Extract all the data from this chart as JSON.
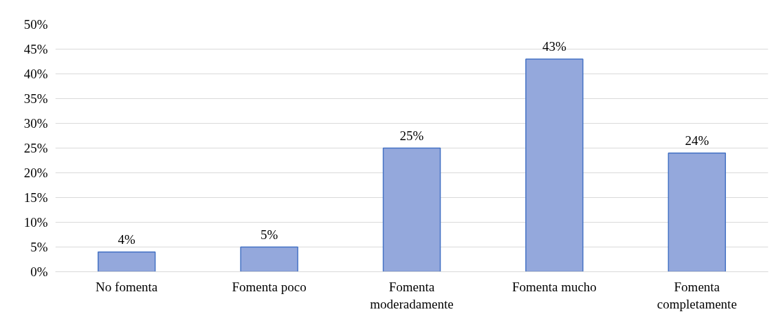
{
  "chart_data": {
    "type": "bar",
    "categories": [
      "No fomenta",
      "Fomenta poco",
      "Fomenta moderadamente",
      "Fomenta mucho",
      "Fomenta completamente"
    ],
    "values": [
      4,
      5,
      25,
      43,
      24
    ],
    "color": "#94a8dc",
    "ylim": [
      0,
      50
    ],
    "yticks": [
      {
        "value": 0,
        "label": "0%"
      },
      {
        "value": 5,
        "label": "5%"
      },
      {
        "value": 10,
        "label": "10%"
      },
      {
        "value": 15,
        "label": "15%"
      },
      {
        "value": 20,
        "label": "20%"
      },
      {
        "value": 25,
        "label": "25%"
      },
      {
        "value": 30,
        "label": "30%"
      },
      {
        "value": 35,
        "label": "35%"
      },
      {
        "value": 40,
        "label": "40%"
      },
      {
        "value": 45,
        "label": "45%"
      },
      {
        "value": 50,
        "label": "50%"
      }
    ],
    "grid": "y",
    "data_labels": true,
    "value_labels": [
      "4%",
      "5%",
      "25%",
      "43%",
      "24%"
    ]
  }
}
